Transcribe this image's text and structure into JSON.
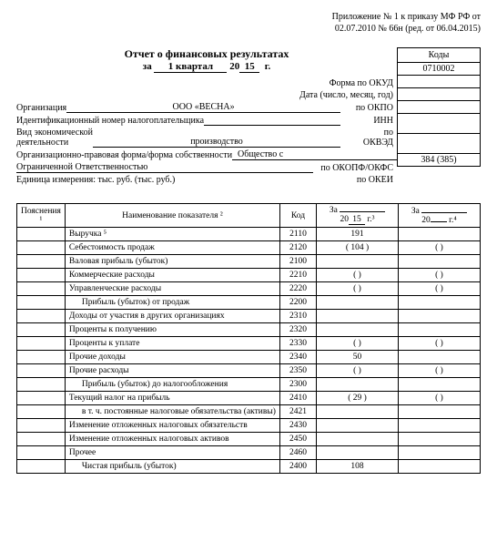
{
  "appendix": {
    "line1": "Приложение № 1 к приказу МФ РФ от",
    "line2": "02.07.2010 № 66н (ред. от 06.04.2015)"
  },
  "title": "Отчет о финансовых результатах",
  "period": {
    "prefix": "за",
    "quarter": "1 квартал",
    "year_prefix": "20",
    "year": "15",
    "suffix": "г."
  },
  "codes_header": "Коды",
  "fields": {
    "okud_label": "Форма по ОКУД",
    "okud_value": "0710002",
    "date_label": "Дата (число, месяц, год)",
    "org_label": "Организация",
    "org_value": "ООО «ВЕСНА»",
    "okpo_label": "по ОКПО",
    "inn_label": "Идентификационный номер налогоплательщика",
    "inn_right": "ИНН",
    "activity_label1": "Вид экономической",
    "activity_label2": "деятельности",
    "activity_value": "производство",
    "okved_label1": "по",
    "okved_label2": "ОКВЭД",
    "form_label": "Организационно-правовая форма/форма собственности",
    "form_value": "Общество с",
    "form_value2": "Ограниченной Ответственностью",
    "okopf_label": "по ОКОПФ/ОКФС",
    "unit_label": "Единица измерения: тыс. руб. (тыс. руб.)",
    "okei_label": "по ОКЕИ",
    "okei_value": "384 (385)"
  },
  "table": {
    "head": {
      "explanations": "Пояснения ¹",
      "name": "Наименование показателя ²",
      "code": "Код",
      "period_prefix": "За",
      "p1_year_prefix": "20",
      "p1_year": "15",
      "p1_suffix": "г.³",
      "p2_year_prefix": "20",
      "p2_year": "",
      "p2_suffix": "г.⁴"
    },
    "rows": [
      {
        "name": "Выручка ⁵",
        "code": "2110",
        "p1": "191",
        "p2": ""
      },
      {
        "name": "Себестоимость продаж",
        "code": "2120",
        "p1": "(          104          )",
        "p2": "(                         )"
      },
      {
        "name": "Валовая прибыль (убыток)",
        "code": "2100",
        "p1": "",
        "p2": ""
      },
      {
        "name": "Коммерческие расходы",
        "code": "2210",
        "p1": "(                         )",
        "p2": "(                         )"
      },
      {
        "name": "Управленческие расходы",
        "code": "2220",
        "p1": "(                         )",
        "p2": "(                         )"
      },
      {
        "name": "Прибыль (убыток) от продаж",
        "indent": true,
        "code": "2200",
        "p1": "",
        "p2": ""
      },
      {
        "name": "Доходы от участия в других организациях",
        "code": "2310",
        "p1": "",
        "p2": ""
      },
      {
        "name": "Проценты к получению",
        "code": "2320",
        "p1": "",
        "p2": ""
      },
      {
        "name": "Проценты к уплате",
        "code": "2330",
        "p1": "(                         )",
        "p2": "(                         )"
      },
      {
        "name": "Прочие доходы",
        "code": "2340",
        "p1": "50",
        "p2": ""
      },
      {
        "name": "Прочие расходы",
        "code": "2350",
        "p1": "(                         )",
        "p2": "(                         )"
      },
      {
        "name": "Прибыль (убыток) до налогообложения",
        "indent": true,
        "code": "2300",
        "p1": "",
        "p2": ""
      },
      {
        "name": "Текущий налог на прибыль",
        "code": "2410",
        "p1": "(           29           )",
        "p2": "(                         )"
      },
      {
        "name": "в т. ч. постоянные налоговые обязательства (активы)",
        "indent": true,
        "code": "2421",
        "p1": "",
        "p2": ""
      },
      {
        "name": "Изменение отложенных налоговых обязательств",
        "code": "2430",
        "p1": "",
        "p2": ""
      },
      {
        "name": "Изменение отложенных налоговых активов",
        "code": "2450",
        "p1": "",
        "p2": ""
      },
      {
        "name": "Прочее",
        "code": "2460",
        "p1": "",
        "p2": ""
      },
      {
        "name": "Чистая прибыль (убыток)",
        "indent": true,
        "code": "2400",
        "p1": "108",
        "p2": ""
      }
    ]
  }
}
